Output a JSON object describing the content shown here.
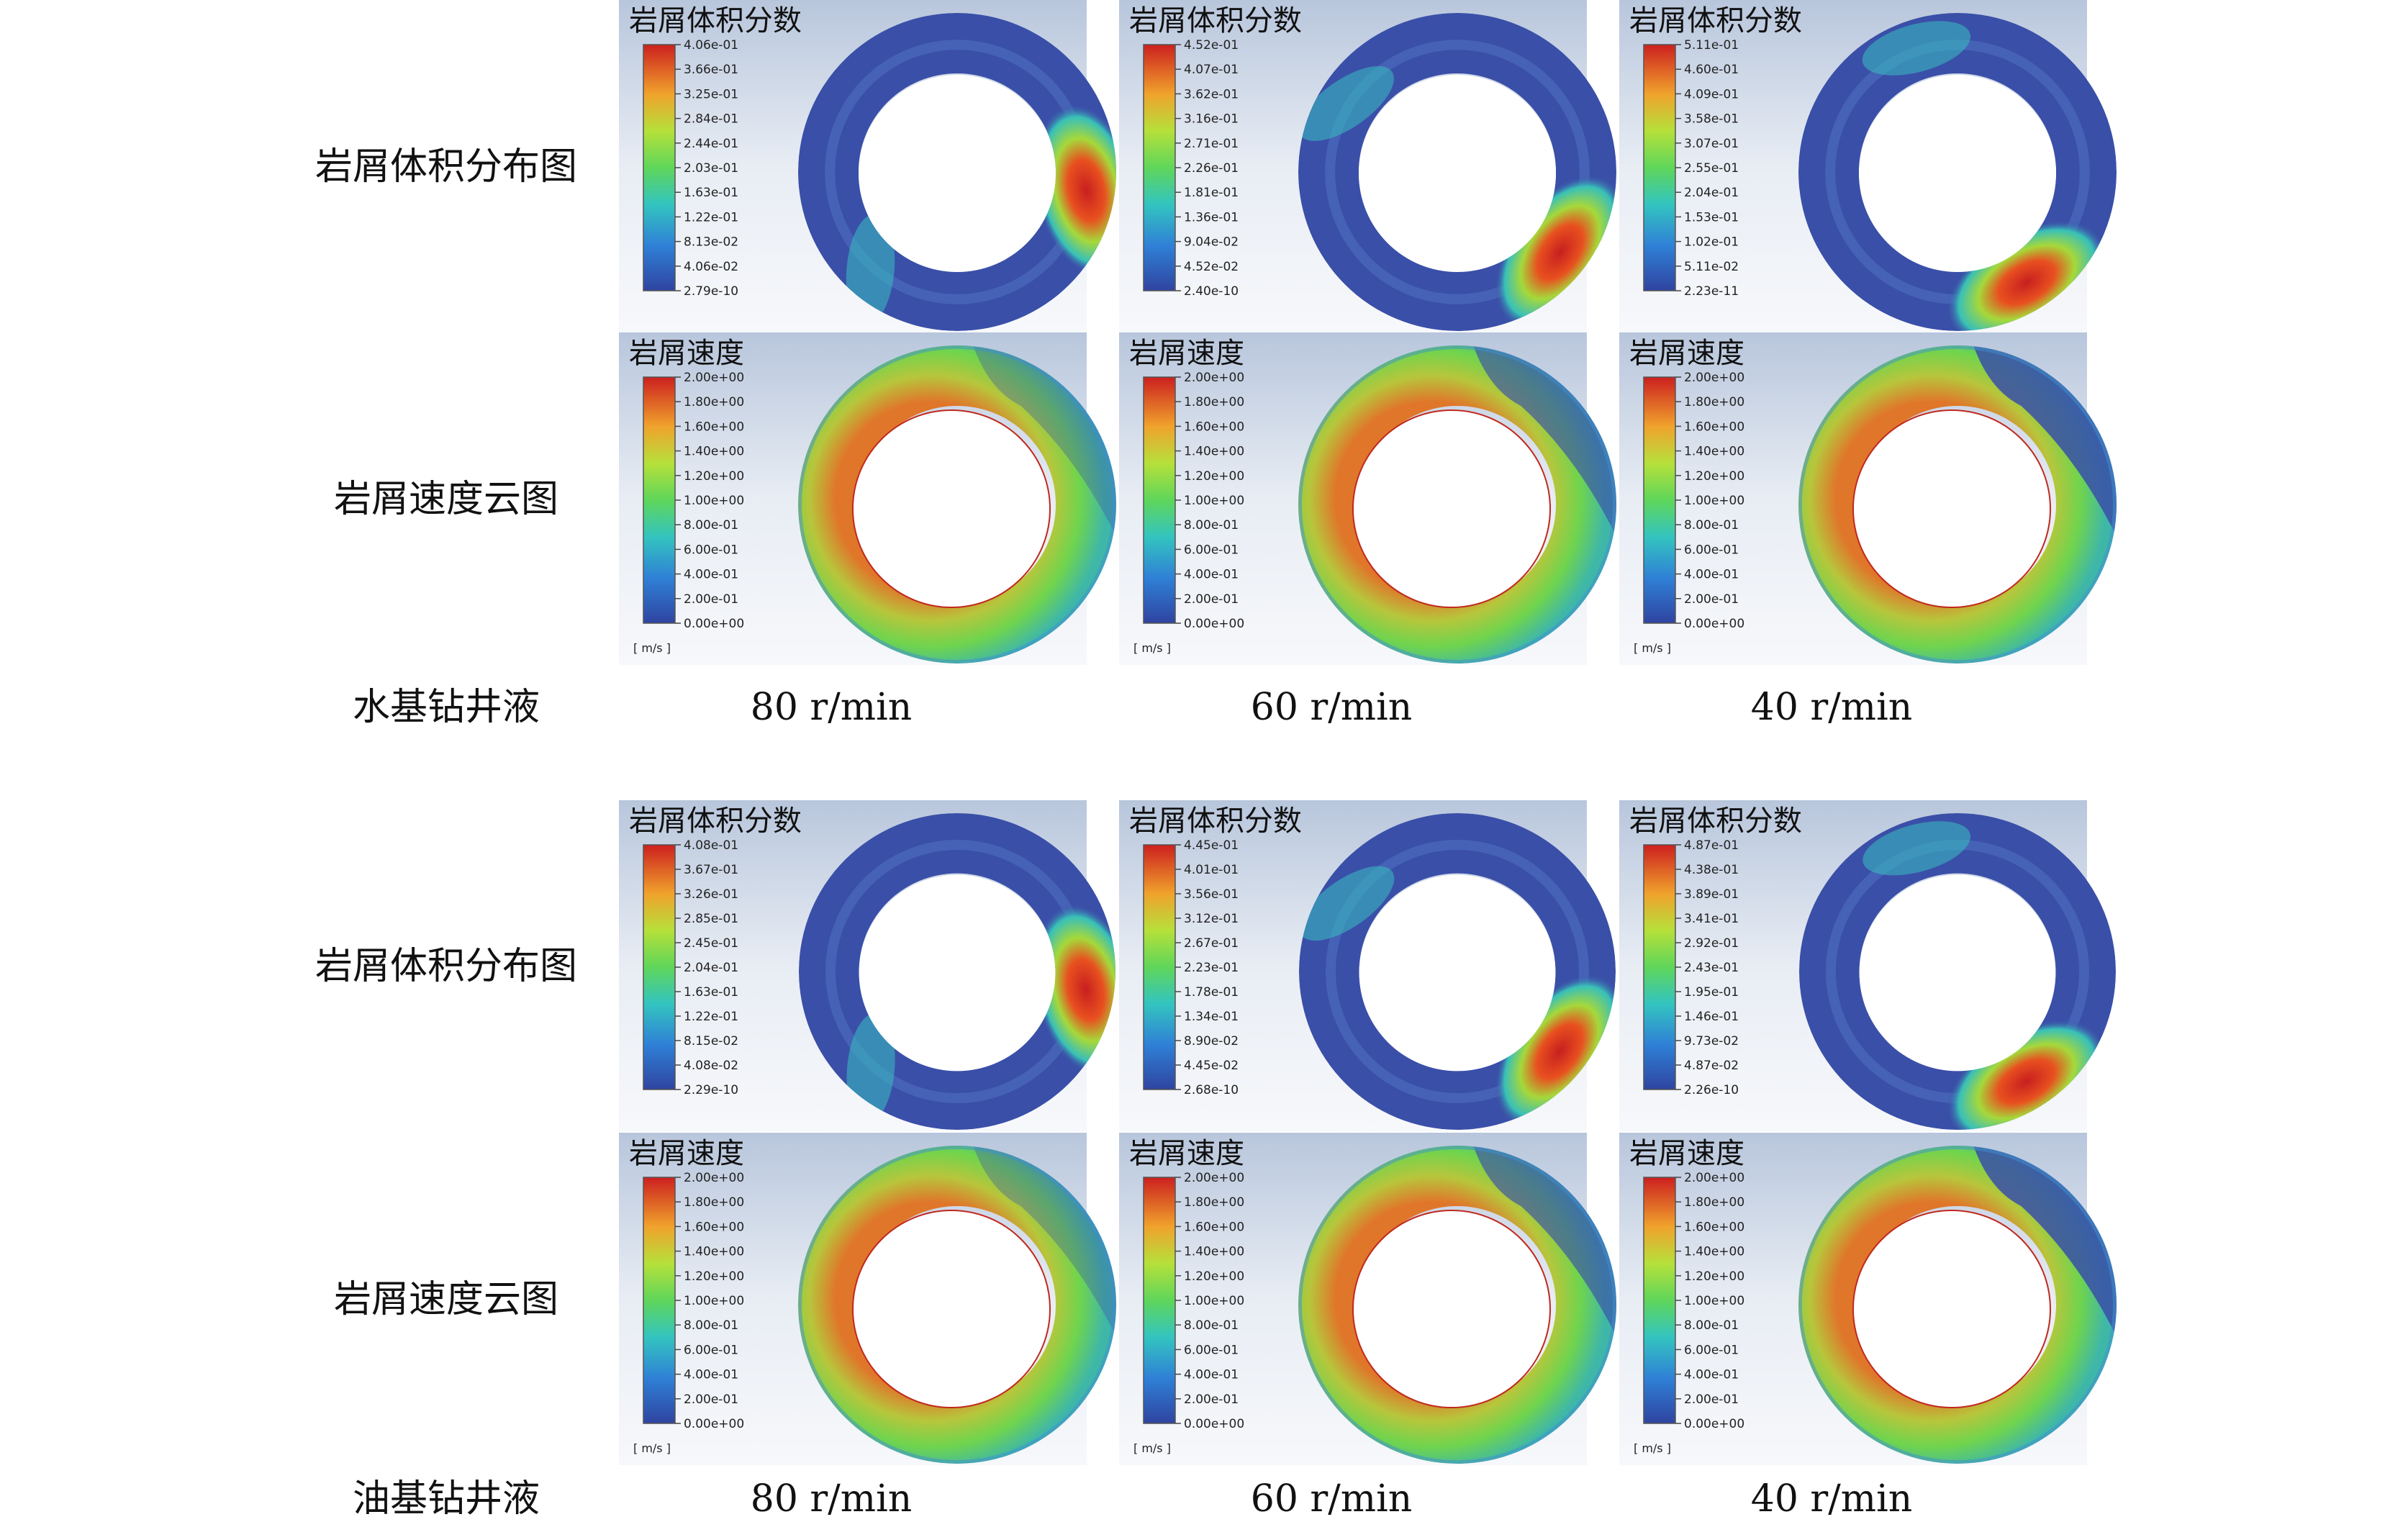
{
  "sections": [
    {
      "fluid_label": "水基钻井液",
      "row_labels": [
        "岩屑体积分布图",
        "岩屑速度云图"
      ],
      "rpm_labels": [
        "80 r/min",
        "60 r/min",
        "40 r/min"
      ],
      "fraction_panels": [
        {
          "title": "岩屑体积分数",
          "ticks": [
            "4.06e-01",
            "3.66e-01",
            "3.25e-01",
            "2.84e-01",
            "2.44e-01",
            "2.03e-01",
            "1.63e-01",
            "1.22e-01",
            "8.13e-02",
            "4.06e-02",
            "2.79e-10"
          ]
        },
        {
          "title": "岩屑体积分数",
          "ticks": [
            "4.52e-01",
            "4.07e-01",
            "3.62e-01",
            "3.16e-01",
            "2.71e-01",
            "2.26e-01",
            "1.81e-01",
            "1.36e-01",
            "9.04e-02",
            "4.52e-02",
            "2.40e-10"
          ]
        },
        {
          "title": "岩屑体积分数",
          "ticks": [
            "5.11e-01",
            "4.60e-01",
            "4.09e-01",
            "3.58e-01",
            "3.07e-01",
            "2.55e-01",
            "2.04e-01",
            "1.53e-01",
            "1.02e-01",
            "5.11e-02",
            "2.23e-11"
          ]
        }
      ],
      "velocity_panels": [
        {
          "title": "岩屑速度",
          "unit": "[ m/s ]",
          "ticks": [
            "2.00e+00",
            "1.80e+00",
            "1.60e+00",
            "1.40e+00",
            "1.20e+00",
            "1.00e+00",
            "8.00e-01",
            "6.00e-01",
            "4.00e-01",
            "2.00e-01",
            "0.00e+00"
          ]
        },
        {
          "title": "岩屑速度",
          "unit": "[ m/s ]",
          "ticks": [
            "2.00e+00",
            "1.80e+00",
            "1.60e+00",
            "1.40e+00",
            "1.20e+00",
            "1.00e+00",
            "8.00e-01",
            "6.00e-01",
            "4.00e-01",
            "2.00e-01",
            "0.00e+00"
          ]
        },
        {
          "title": "岩屑速度",
          "unit": "[ m/s ]",
          "ticks": [
            "2.00e+00",
            "1.80e+00",
            "1.60e+00",
            "1.40e+00",
            "1.20e+00",
            "1.00e+00",
            "8.00e-01",
            "6.00e-01",
            "4.00e-01",
            "2.00e-01",
            "0.00e+00"
          ]
        }
      ]
    },
    {
      "fluid_label": "油基钻井液",
      "row_labels": [
        "岩屑体积分布图",
        "岩屑速度云图"
      ],
      "rpm_labels": [
        "80 r/min",
        "60 r/min",
        "40 r/min"
      ],
      "fraction_panels": [
        {
          "title": "岩屑体积分数",
          "ticks": [
            "4.08e-01",
            "3.67e-01",
            "3.26e-01",
            "2.85e-01",
            "2.45e-01",
            "2.04e-01",
            "1.63e-01",
            "1.22e-01",
            "8.15e-02",
            "4.08e-02",
            "2.29e-10"
          ]
        },
        {
          "title": "岩屑体积分数",
          "ticks": [
            "4.45e-01",
            "4.01e-01",
            "3.56e-01",
            "3.12e-01",
            "2.67e-01",
            "2.23e-01",
            "1.78e-01",
            "1.34e-01",
            "8.90e-02",
            "4.45e-02",
            "2.68e-10"
          ]
        },
        {
          "title": "岩屑体积分数",
          "ticks": [
            "4.87e-01",
            "4.38e-01",
            "3.89e-01",
            "3.41e-01",
            "2.92e-01",
            "2.43e-01",
            "1.95e-01",
            "1.46e-01",
            "9.73e-02",
            "4.87e-02",
            "2.26e-10"
          ]
        }
      ],
      "velocity_panels": [
        {
          "title": "岩屑速度",
          "unit": "[ m/s ]",
          "ticks": [
            "2.00e+00",
            "1.80e+00",
            "1.60e+00",
            "1.40e+00",
            "1.20e+00",
            "1.00e+00",
            "8.00e-01",
            "6.00e-01",
            "4.00e-01",
            "2.00e-01",
            "0.00e+00"
          ]
        },
        {
          "title": "岩屑速度",
          "unit": "[ m/s ]",
          "ticks": [
            "2.00e+00",
            "1.80e+00",
            "1.60e+00",
            "1.40e+00",
            "1.20e+00",
            "1.00e+00",
            "8.00e-01",
            "6.00e-01",
            "4.00e-01",
            "2.00e-01",
            "0.00e+00"
          ]
        },
        {
          "title": "岩屑速度",
          "unit": "[ m/s ]",
          "ticks": [
            "2.00e+00",
            "1.80e+00",
            "1.60e+00",
            "1.40e+00",
            "1.20e+00",
            "1.00e+00",
            "8.00e-01",
            "6.00e-01",
            "4.00e-01",
            "2.00e-01",
            "0.00e+00"
          ]
        }
      ]
    }
  ],
  "colors": {
    "panel_background": "#dfe6f0",
    "contour_low": "#3a4fa8",
    "contour_mid": "#7cd64a",
    "contour_high": "#d63024",
    "inner_outline": "#c0281e"
  }
}
